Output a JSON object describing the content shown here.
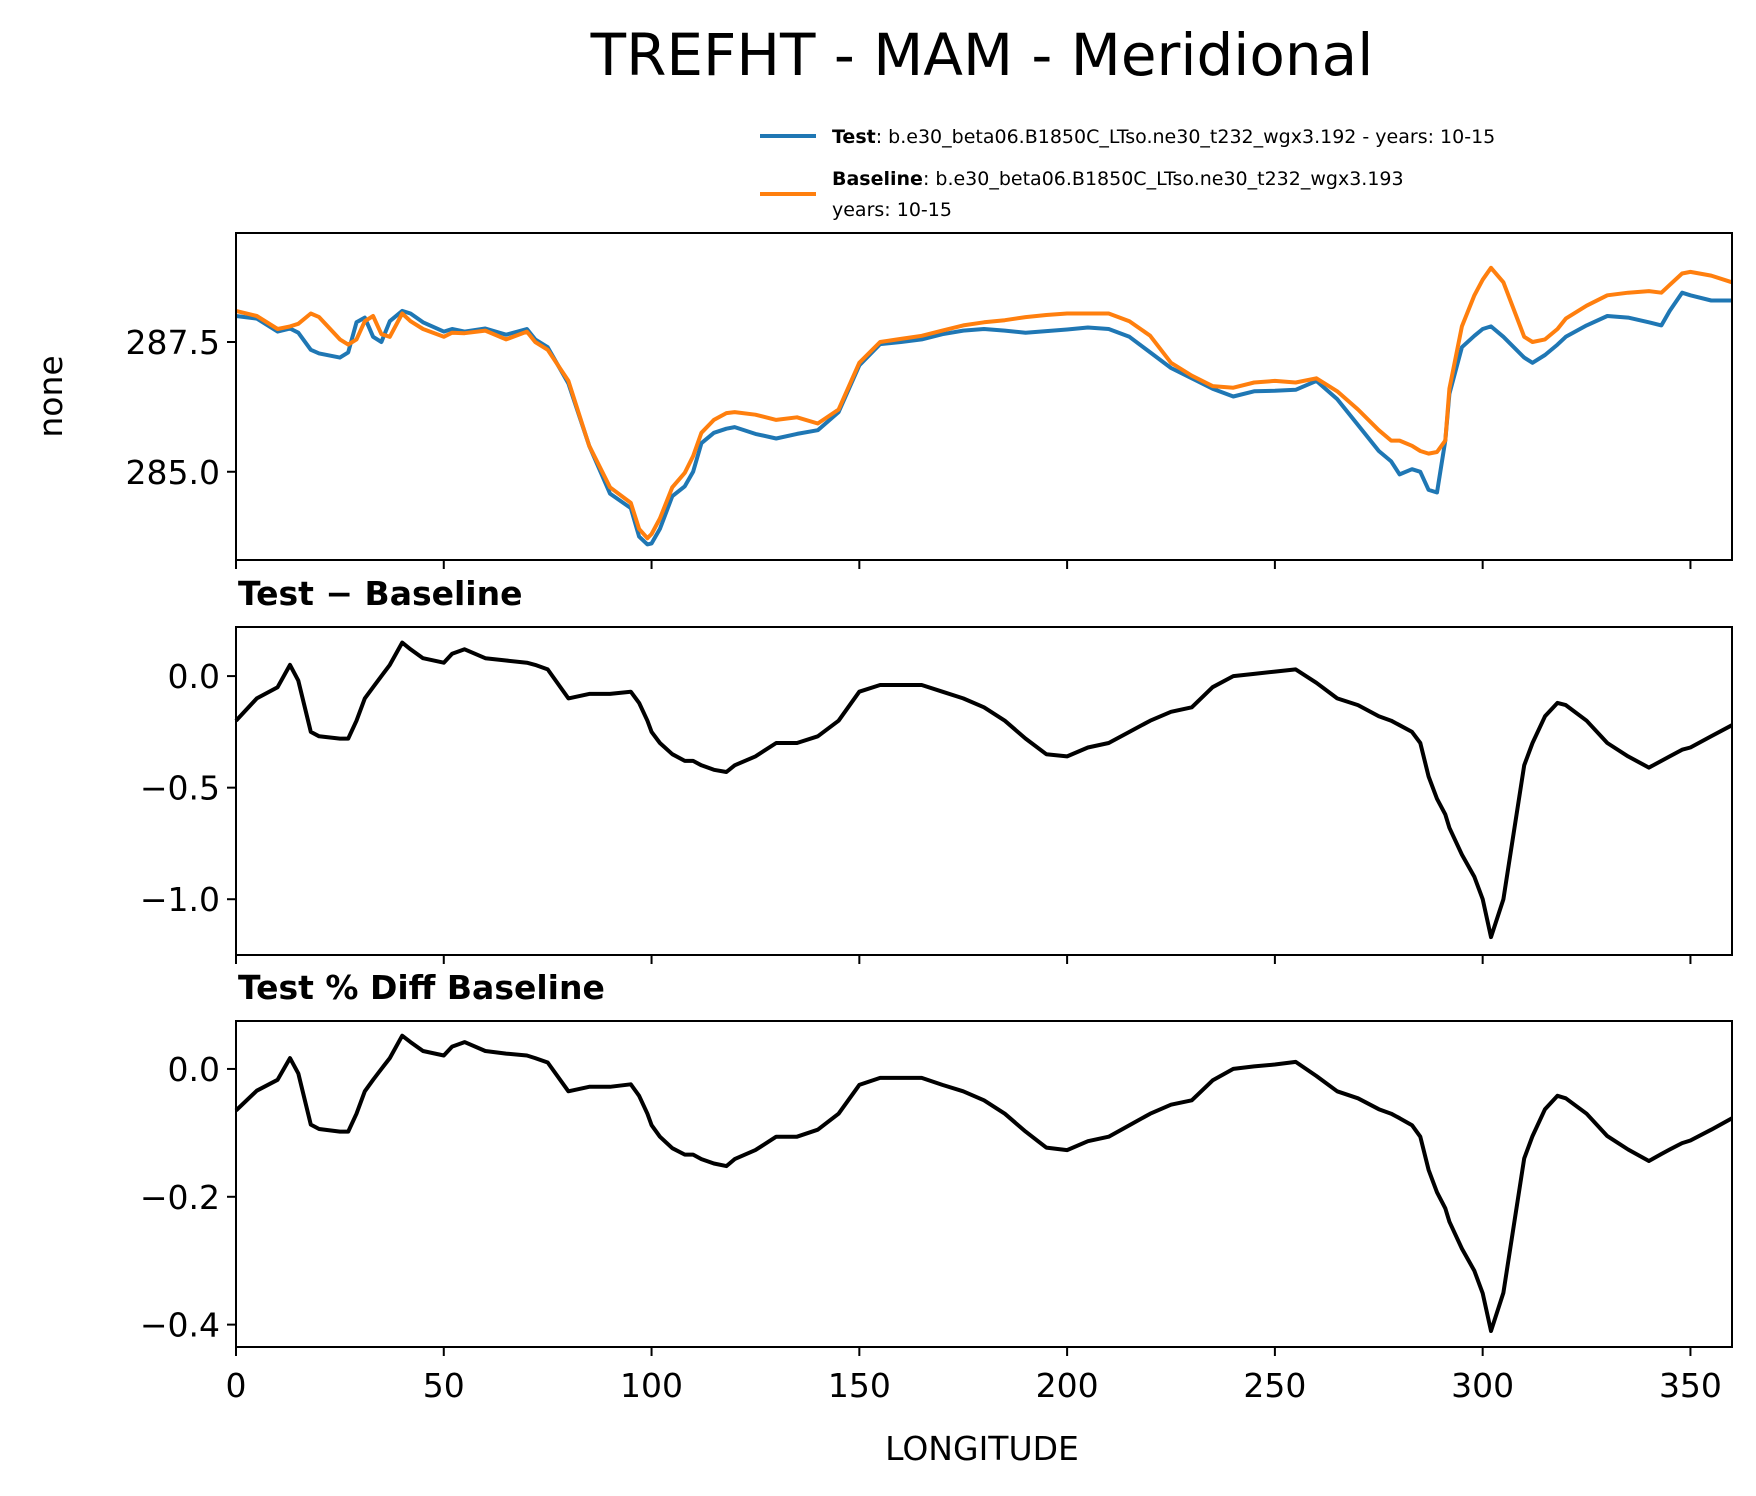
{
  "chart_data": {
    "type": "line",
    "title": "TREFHT - MAM - Meridional",
    "xlabel": "LONGITUDE",
    "xlim": [
      0,
      360
    ],
    "x_ticks": [
      0,
      50,
      100,
      150,
      200,
      250,
      300,
      350
    ],
    "x_tick_labels": [
      "0",
      "50",
      "100",
      "150",
      "200",
      "250",
      "300",
      "350"
    ],
    "legend": {
      "position": "top-right",
      "entries": [
        {
          "bold": "Test",
          "sep": ": ",
          "text": "b.e30_beta06.B1850C_LTso.ne30_t232_wgx3.192 - years: 10-15",
          "text2": "",
          "color": "#1f77b4"
        },
        {
          "bold": "Baseline",
          "sep": ": ",
          "text": "b.e30_beta06.B1850C_LTso.ne30_t232_wgx3.193",
          "text2": "years: 10-15",
          "color": "#ff7f0e"
        }
      ]
    },
    "x": [
      0,
      5,
      10,
      13,
      15,
      18,
      20,
      25,
      27,
      29,
      31,
      33,
      35,
      37,
      40,
      42,
      45,
      50,
      52,
      55,
      60,
      65,
      70,
      72,
      75,
      80,
      85,
      90,
      95,
      97,
      99,
      100,
      102,
      105,
      108,
      110,
      112,
      115,
      118,
      120,
      125,
      130,
      135,
      140,
      145,
      150,
      155,
      160,
      165,
      170,
      175,
      180,
      185,
      190,
      195,
      200,
      205,
      210,
      215,
      220,
      225,
      230,
      235,
      240,
      245,
      250,
      255,
      260,
      265,
      270,
      275,
      278,
      280,
      283,
      285,
      287,
      289,
      291,
      292,
      295,
      298,
      300,
      302,
      305,
      310,
      312,
      315,
      318,
      320,
      325,
      330,
      335,
      340,
      343,
      345,
      348,
      350,
      355,
      360
    ],
    "series": [
      {
        "name": "Test",
        "color": "#1f77b4",
        "panel": 0,
        "values": [
          288.0,
          287.95,
          287.7,
          287.76,
          287.68,
          287.35,
          287.28,
          287.2,
          287.3,
          287.88,
          287.97,
          287.6,
          287.5,
          287.9,
          288.1,
          288.05,
          287.88,
          287.7,
          287.75,
          287.7,
          287.76,
          287.64,
          287.75,
          287.55,
          287.4,
          286.7,
          285.5,
          284.58,
          284.3,
          283.75,
          283.6,
          283.62,
          283.9,
          284.53,
          284.72,
          285.0,
          285.55,
          285.75,
          285.83,
          285.86,
          285.73,
          285.64,
          285.73,
          285.8,
          286.15,
          287.05,
          287.46,
          287.5,
          287.55,
          287.65,
          287.72,
          287.75,
          287.72,
          287.68,
          287.71,
          287.74,
          287.78,
          287.75,
          287.6,
          287.3,
          287.0,
          286.8,
          286.6,
          286.45,
          286.55,
          286.56,
          286.58,
          286.75,
          286.4,
          285.9,
          285.4,
          285.2,
          284.95,
          285.05,
          285.0,
          284.65,
          284.6,
          285.6,
          286.5,
          287.4,
          287.62,
          287.75,
          287.8,
          287.6,
          287.2,
          287.1,
          287.25,
          287.45,
          287.6,
          287.82,
          288.0,
          287.97,
          287.88,
          287.82,
          288.1,
          288.45,
          288.4,
          288.3,
          288.3
        ]
      },
      {
        "name": "Baseline",
        "color": "#ff7f0e",
        "panel": 0,
        "values": [
          288.1,
          288.0,
          287.75,
          287.8,
          287.85,
          288.05,
          287.98,
          287.55,
          287.45,
          287.55,
          287.9,
          288.0,
          287.65,
          287.6,
          288.05,
          287.9,
          287.75,
          287.6,
          287.68,
          287.67,
          287.72,
          287.55,
          287.7,
          287.5,
          287.35,
          286.75,
          285.5,
          284.7,
          284.4,
          283.9,
          283.72,
          283.8,
          284.1,
          284.7,
          284.98,
          285.3,
          285.75,
          286.0,
          286.13,
          286.15,
          286.1,
          286.0,
          286.05,
          285.93,
          286.2,
          287.1,
          287.5,
          287.56,
          287.62,
          287.72,
          287.82,
          287.88,
          287.92,
          287.98,
          288.02,
          288.05,
          288.05,
          288.05,
          287.9,
          287.62,
          287.1,
          286.85,
          286.65,
          286.62,
          286.72,
          286.75,
          286.72,
          286.8,
          286.55,
          286.2,
          285.8,
          285.6,
          285.6,
          285.5,
          285.4,
          285.35,
          285.38,
          285.6,
          286.6,
          287.8,
          288.4,
          288.7,
          288.93,
          288.65,
          287.6,
          287.5,
          287.55,
          287.75,
          287.95,
          288.2,
          288.4,
          288.45,
          288.48,
          288.45,
          288.6,
          288.82,
          288.85,
          288.78,
          288.65
        ]
      },
      {
        "name": "Test - Baseline",
        "color": "#000000",
        "panel": 1,
        "values": [
          -0.2,
          -0.1,
          -0.05,
          0.05,
          -0.02,
          -0.25,
          -0.27,
          -0.28,
          -0.28,
          -0.2,
          -0.1,
          -0.05,
          0.0,
          0.05,
          0.15,
          0.12,
          0.08,
          0.06,
          0.1,
          0.12,
          0.08,
          0.07,
          0.06,
          0.05,
          0.03,
          -0.1,
          -0.08,
          -0.08,
          -0.07,
          -0.12,
          -0.2,
          -0.25,
          -0.3,
          -0.35,
          -0.38,
          -0.38,
          -0.4,
          -0.42,
          -0.43,
          -0.4,
          -0.36,
          -0.3,
          -0.3,
          -0.27,
          -0.2,
          -0.07,
          -0.04,
          -0.04,
          -0.04,
          -0.07,
          -0.1,
          -0.14,
          -0.2,
          -0.28,
          -0.35,
          -0.36,
          -0.32,
          -0.3,
          -0.25,
          -0.2,
          -0.16,
          -0.14,
          -0.05,
          0.0,
          0.01,
          0.02,
          0.03,
          -0.03,
          -0.1,
          -0.13,
          -0.18,
          -0.2,
          -0.22,
          -0.25,
          -0.3,
          -0.45,
          -0.55,
          -0.62,
          -0.68,
          -0.8,
          -0.9,
          -1.0,
          -1.17,
          -1.0,
          -0.4,
          -0.3,
          -0.18,
          -0.12,
          -0.13,
          -0.2,
          -0.3,
          -0.36,
          -0.41,
          -0.38,
          -0.36,
          -0.33,
          -0.32,
          -0.27,
          -0.22
        ]
      },
      {
        "name": "Test % Diff Baseline",
        "color": "#000000",
        "panel": 2,
        "values": [
          -0.065,
          -0.034,
          -0.017,
          0.017,
          -0.007,
          -0.087,
          -0.094,
          -0.098,
          -0.098,
          -0.07,
          -0.035,
          -0.017,
          0.0,
          0.017,
          0.052,
          0.042,
          0.028,
          0.021,
          0.035,
          0.042,
          0.028,
          0.024,
          0.021,
          0.017,
          0.01,
          -0.035,
          -0.028,
          -0.028,
          -0.024,
          -0.042,
          -0.07,
          -0.088,
          -0.106,
          -0.124,
          -0.134,
          -0.134,
          -0.141,
          -0.148,
          -0.152,
          -0.141,
          -0.127,
          -0.106,
          -0.106,
          -0.095,
          -0.07,
          -0.025,
          -0.014,
          -0.014,
          -0.014,
          -0.025,
          -0.035,
          -0.049,
          -0.07,
          -0.098,
          -0.123,
          -0.127,
          -0.113,
          -0.106,
          -0.088,
          -0.07,
          -0.056,
          -0.049,
          -0.018,
          0.0,
          0.004,
          0.007,
          0.011,
          -0.011,
          -0.035,
          -0.046,
          -0.063,
          -0.07,
          -0.077,
          -0.088,
          -0.106,
          -0.158,
          -0.193,
          -0.218,
          -0.239,
          -0.281,
          -0.316,
          -0.351,
          -0.41,
          -0.35,
          -0.14,
          -0.105,
          -0.063,
          -0.042,
          -0.046,
          -0.07,
          -0.105,
          -0.126,
          -0.144,
          -0.133,
          -0.126,
          -0.116,
          -0.112,
          -0.095,
          -0.077
        ]
      }
    ],
    "panels": [
      {
        "ylabel": "none",
        "subtitle": "",
        "ylim": [
          283.3,
          289.6
        ],
        "yticks": [
          285.0,
          287.5
        ],
        "ytick_labels": [
          "285.0",
          "287.5"
        ]
      },
      {
        "ylabel": "",
        "subtitle": "Test − Baseline",
        "ylim": [
          -1.25,
          0.22
        ],
        "yticks": [
          0.0,
          -0.5,
          -1.0
        ],
        "ytick_labels": [
          "0.0",
          "−0.5",
          "−1.0"
        ]
      },
      {
        "ylabel": "",
        "subtitle": "Test % Diff Baseline",
        "ylim": [
          -0.435,
          0.075
        ],
        "yticks": [
          0.0,
          -0.2,
          -0.4
        ],
        "ytick_labels": [
          "0.0",
          "−0.2",
          "−0.4"
        ]
      }
    ]
  }
}
